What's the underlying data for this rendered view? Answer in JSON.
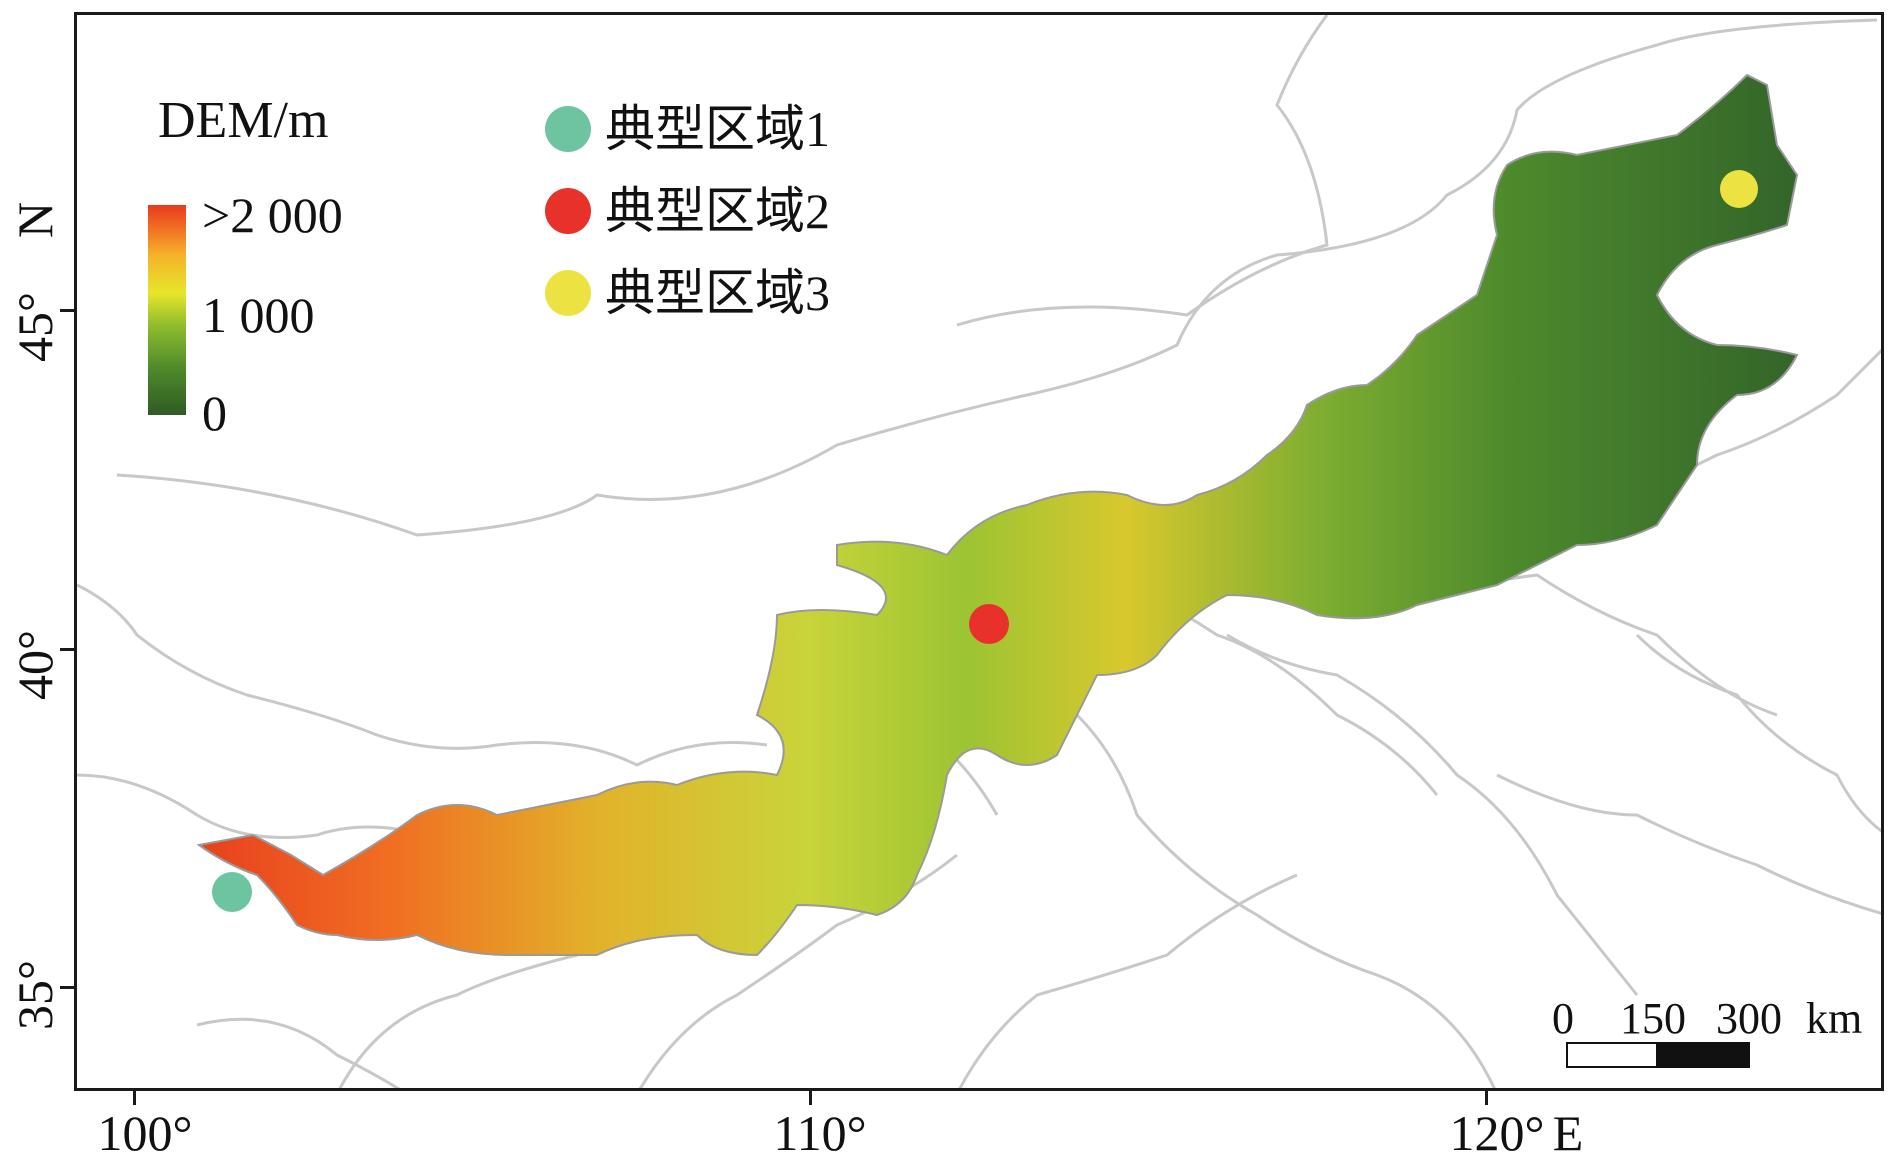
{
  "map": {
    "legend_title": "DEM/m",
    "colorbar": {
      "high_label": ">2 000",
      "mid_label": "1 000",
      "low_label": "0",
      "colors": [
        "#2f5b24",
        "#4e8a2a",
        "#8dbb2c",
        "#e6e62a",
        "#f5b32a",
        "#f06a22",
        "#e83a1e"
      ]
    },
    "sites": [
      {
        "label": "典型区域1",
        "color": "#6cc4a1",
        "lon": 101.5,
        "lat": 36.4
      },
      {
        "label": "典型区域2",
        "color": "#e8312a",
        "lon": 112.6,
        "lat": 40.4
      },
      {
        "label": "典型区域3",
        "color": "#ece342",
        "lon": 123.6,
        "lat": 46.8
      }
    ],
    "x_axis": {
      "ticks": [
        "100°",
        "110°",
        "120°"
      ],
      "unit_label": "E"
    },
    "y_axis": {
      "ticks": [
        "35°",
        "40°",
        "45°"
      ],
      "unit_label": "N"
    },
    "scale_bar": {
      "labels": [
        "0",
        "150",
        "300"
      ],
      "unit": "km"
    }
  }
}
